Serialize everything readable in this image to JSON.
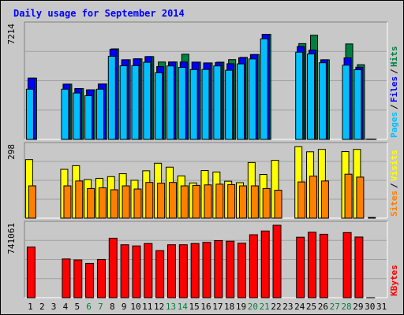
{
  "chart_data": [
    {
      "type": "bar",
      "title": "Daily usage for September 2014",
      "panel": "hits",
      "ymax_label": "7214",
      "ylim": [
        0,
        7214
      ],
      "grid": true,
      "legend": [
        {
          "label": "Pages",
          "color": "#00c0ff"
        },
        {
          "label": "Files",
          "color": "#0000ff"
        },
        {
          "label": "Hits",
          "color": "#008040"
        }
      ],
      "categories": [
        "1",
        "2",
        "3",
        "4",
        "5",
        "6",
        "7",
        "8",
        "9",
        "10",
        "11",
        "12",
        "13",
        "14",
        "15",
        "16",
        "17",
        "18",
        "19",
        "20",
        "21",
        "22",
        "23",
        "24",
        "25",
        "26",
        "27",
        "28",
        "29",
        "30",
        "31"
      ],
      "weekend_days": [
        "6",
        "7",
        "13",
        "14",
        "20",
        "21",
        "27",
        "28"
      ],
      "series": [
        {
          "name": "Hits",
          "color": "#008040",
          "values": [
            3920,
            0,
            0,
            3540,
            3260,
            3180,
            3550,
            5770,
            5080,
            5140,
            5280,
            4940,
            4940,
            5430,
            4930,
            4880,
            4930,
            5090,
            5230,
            5410,
            6690,
            0,
            0,
            6100,
            6630,
            5080,
            0,
            6080,
            4770,
            60,
            0
          ]
        },
        {
          "name": "Files",
          "color": "#0000ff",
          "values": [
            3920,
            0,
            0,
            3540,
            3260,
            3180,
            3550,
            5740,
            5080,
            5140,
            5280,
            4650,
            4940,
            4940,
            4930,
            4880,
            4910,
            4830,
            5210,
            5410,
            6690,
            0,
            0,
            5920,
            5690,
            5080,
            0,
            5200,
            4610,
            60,
            0
          ]
        },
        {
          "name": "Pages",
          "color": "#00c0ff",
          "values": [
            3220,
            0,
            0,
            3220,
            2980,
            2810,
            3220,
            5300,
            4700,
            4710,
            4920,
            4260,
            4690,
            4600,
            4460,
            4470,
            4690,
            4420,
            4820,
            5130,
            6400,
            0,
            0,
            5560,
            5450,
            4890,
            0,
            4740,
            4450,
            60,
            0
          ]
        }
      ]
    },
    {
      "type": "bar",
      "panel": "visits",
      "ymax_label": "298",
      "ylim": [
        0,
        298
      ],
      "grid": true,
      "legend": [
        {
          "label": "Sites",
          "color": "#ff8000"
        },
        {
          "label": "Visits",
          "color": "#ffff00"
        }
      ],
      "categories": [
        "1",
        "2",
        "3",
        "4",
        "5",
        "6",
        "7",
        "8",
        "9",
        "10",
        "11",
        "12",
        "13",
        "14",
        "15",
        "16",
        "17",
        "18",
        "19",
        "20",
        "21",
        "22",
        "23",
        "24",
        "25",
        "26",
        "27",
        "28",
        "29",
        "30",
        "31"
      ],
      "series": [
        {
          "name": "Visits",
          "color": "#ffff00",
          "values": [
            244,
            0,
            0,
            204,
            219,
            162,
            167,
            174,
            186,
            159,
            198,
            229,
            213,
            177,
            148,
            199,
            193,
            155,
            149,
            232,
            183,
            241,
            0,
            297,
            276,
            286,
            0,
            277,
            286,
            0,
            0
          ]
        },
        {
          "name": "Sites",
          "color": "#ff8000",
          "values": [
            136,
            0,
            0,
            136,
            156,
            125,
            128,
            120,
            136,
            123,
            150,
            147,
            150,
            136,
            138,
            140,
            143,
            141,
            136,
            136,
            125,
            118,
            0,
            152,
            176,
            156,
            0,
            184,
            172,
            6,
            0
          ]
        }
      ]
    },
    {
      "type": "bar",
      "panel": "kbytes",
      "ymax_label": "741061",
      "ylim": [
        0,
        741061
      ],
      "grid": true,
      "legend": [
        {
          "label": "KBytes",
          "color": "#ff0000"
        }
      ],
      "categories": [
        "1",
        "2",
        "3",
        "4",
        "5",
        "6",
        "7",
        "8",
        "9",
        "10",
        "11",
        "12",
        "13",
        "14",
        "15",
        "16",
        "17",
        "18",
        "19",
        "20",
        "21",
        "22",
        "23",
        "24",
        "25",
        "26",
        "27",
        "28",
        "29",
        "30",
        "31"
      ],
      "series": [
        {
          "name": "KBytes",
          "color": "#ff0000",
          "values": [
            520000,
            0,
            0,
            400000,
            390000,
            355000,
            395000,
            610000,
            544000,
            532000,
            556000,
            484000,
            544000,
            544000,
            556000,
            568000,
            586000,
            580000,
            559000,
            645000,
            683000,
            741061,
            0,
            620000,
            670000,
            650000,
            0,
            667000,
            622000,
            8000,
            0
          ]
        }
      ]
    }
  ]
}
